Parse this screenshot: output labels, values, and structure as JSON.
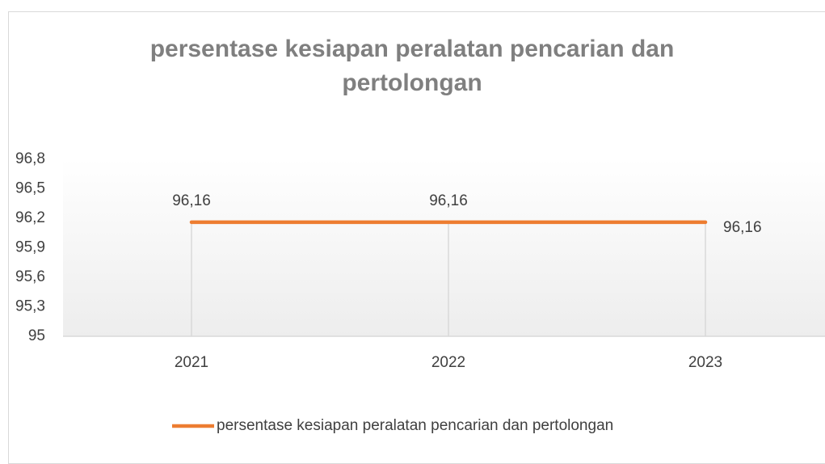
{
  "chart_data": {
    "type": "line",
    "title": "persentase kesiapan peralatan pencarian dan pertolongan",
    "categories": [
      "2021",
      "2022",
      "2023"
    ],
    "series": [
      {
        "name": "persentase kesiapan peralatan pencarian dan pertolongan",
        "color": "#ed7d31",
        "values": [
          96.16,
          96.16,
          96.16
        ],
        "value_labels": [
          "96,16",
          "96,16",
          "96,16"
        ]
      }
    ],
    "ylim": [
      95,
      96.8
    ],
    "yticks": [
      95,
      {
        "value": 95.3,
        "label": "95,3"
      },
      {
        "value": 95.6,
        "label": "95,6"
      },
      {
        "value": 95.9,
        "label": "95,9"
      },
      {
        "value": 96.2,
        "label": "96,2"
      },
      {
        "value": 96.5,
        "label": "96,5"
      },
      {
        "value": 96.8,
        "label": "96,8"
      }
    ],
    "grid": false,
    "drop_lines": true,
    "legend": "bottom"
  }
}
